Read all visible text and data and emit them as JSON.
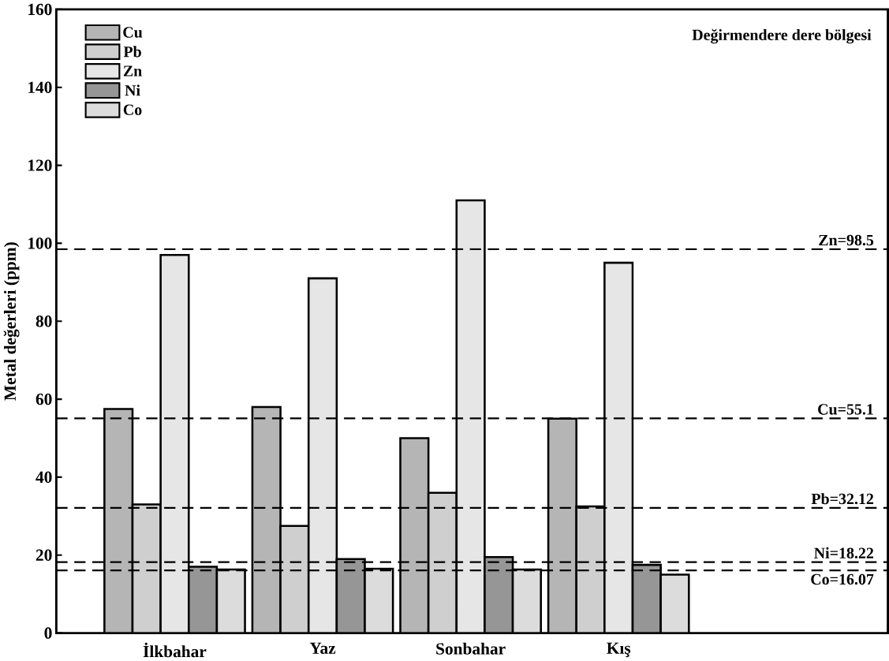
{
  "chart_data": {
    "type": "bar",
    "title": "Değirmendere dere bölgesi",
    "ylabel": "Metal değerleri (ppm)",
    "categories": [
      "İlkbahar",
      "Yaz",
      "Sonbahar",
      "Kış"
    ],
    "series": [
      {
        "name": "Cu",
        "color": "#b5b5b5",
        "values": [
          57.5,
          58,
          50,
          55
        ]
      },
      {
        "name": "Pb",
        "color": "#cfcfcf",
        "values": [
          33,
          27.5,
          36,
          32.5
        ]
      },
      {
        "name": "Zn",
        "color": "#e6e6e6",
        "values": [
          97,
          91,
          111,
          95
        ]
      },
      {
        "name": "Ni",
        "color": "#969696",
        "values": [
          17,
          19,
          19.5,
          17.5
        ]
      },
      {
        "name": "Co",
        "color": "#dcdcdc",
        "values": [
          16.3,
          16.5,
          16.3,
          15
        ]
      }
    ],
    "ylim": [
      0,
      160
    ],
    "yticks": [
      0,
      20,
      40,
      60,
      80,
      100,
      120,
      140,
      160
    ],
    "ref_lines": [
      {
        "axis": "y",
        "value": 98.5,
        "label": "Zn=98.5",
        "color": "#000000",
        "line_style": "dashed"
      },
      {
        "axis": "y",
        "value": 55.1,
        "label": "Cu=55.1",
        "color": "#000000",
        "line_style": "dashed"
      },
      {
        "axis": "y",
        "value": 32.12,
        "label": "Pb=32.12",
        "color": "#000000",
        "line_style": "dashed"
      },
      {
        "axis": "y",
        "value": 18.22,
        "label": "Ni=18.22",
        "color": "#000000",
        "line_style": "dashed"
      },
      {
        "axis": "y",
        "value": 16.07,
        "label": "Co=16.07",
        "color": "#000000",
        "line_style": "dashed"
      }
    ],
    "legend": "top left",
    "grid": false
  }
}
